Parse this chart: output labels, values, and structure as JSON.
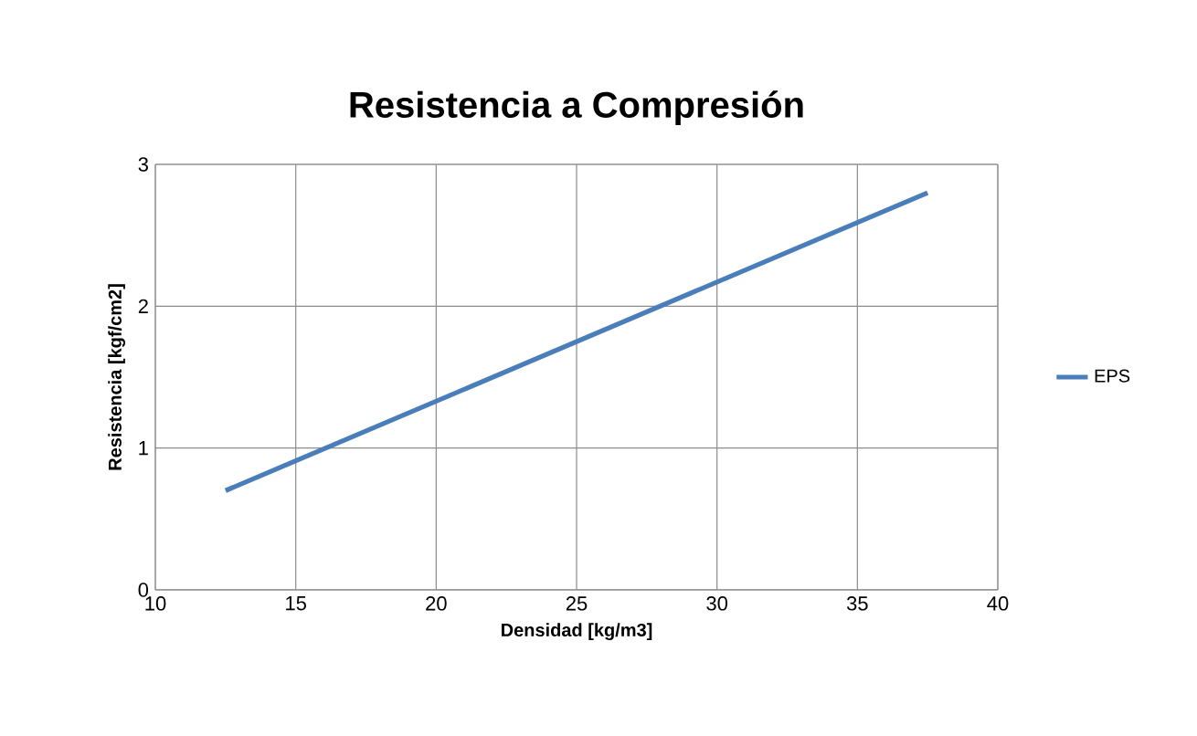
{
  "chart_data": {
    "type": "line",
    "title": "Resistencia a Compresión",
    "xlabel": "Densidad  [kg/m3]",
    "ylabel": "Resistencia  [kgf/cm2]",
    "series": [
      {
        "name": "EPS",
        "color": "#4a7ebb",
        "x": [
          12.5,
          37.5
        ],
        "values": [
          0.7,
          2.8
        ]
      }
    ],
    "xlim": [
      10,
      40
    ],
    "xticks": [
      10,
      15,
      20,
      25,
      30,
      35,
      40
    ],
    "ylim": [
      0,
      3
    ],
    "yticks": [
      0,
      1,
      2,
      3
    ],
    "grid": true,
    "legend": "right",
    "marker": "none",
    "line_style": "solid"
  }
}
